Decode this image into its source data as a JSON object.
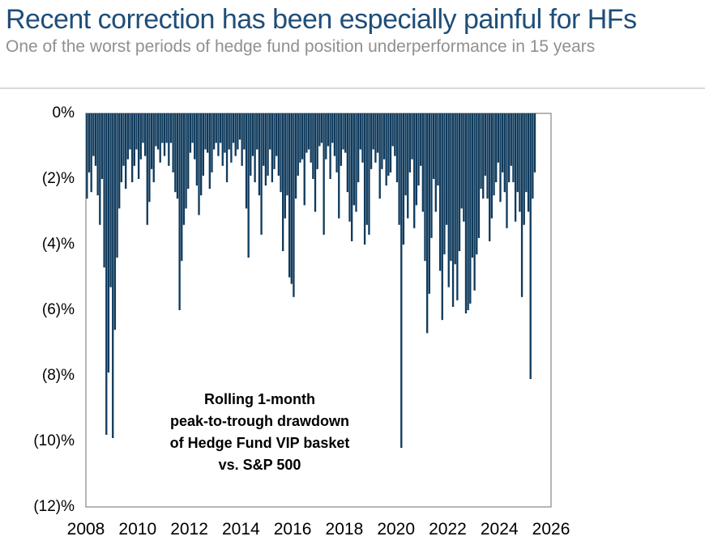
{
  "header": {
    "title": "Recent correction has been especially painful for HFs",
    "subtitle": "One of the worst periods of hedge fund position underperformance in 15 years"
  },
  "colors": {
    "title_navy": "#1f4e79",
    "subtitle_gray": "#909090",
    "bar_navy": "#0f3a5c",
    "plot_border_gray": "#9e9e9e",
    "divider_gray": "#d8d8d8"
  },
  "chart_data": {
    "type": "bar",
    "annotation": "Rolling 1-month\npeak-to-trough drawdown\nof Hedge Fund VIP basket\nvs. S&P 500",
    "bar_color": "#0f3a5c",
    "ylim": [
      -12,
      0
    ],
    "xlim_years": [
      2008,
      2026
    ],
    "grid": false,
    "legend": "none",
    "y_ticks": [
      {
        "label": "0%",
        "value": 0
      },
      {
        "label": "(2)%",
        "value": -2
      },
      {
        "label": "(4)%",
        "value": -4
      },
      {
        "label": "(6)%",
        "value": -6
      },
      {
        "label": "(8)%",
        "value": -8
      },
      {
        "label": "(10)%",
        "value": -10
      },
      {
        "label": "(12)%",
        "value": -12
      }
    ],
    "x_ticks": [
      {
        "label": "2008",
        "year": 2008
      },
      {
        "label": "2010",
        "year": 2010
      },
      {
        "label": "2012",
        "year": 2012
      },
      {
        "label": "2014",
        "year": 2014
      },
      {
        "label": "2016",
        "year": 2016
      },
      {
        "label": "2018",
        "year": 2018
      },
      {
        "label": "2020",
        "year": 2020
      },
      {
        "label": "2022",
        "year": 2022
      },
      {
        "label": "2024",
        "year": 2024
      },
      {
        "label": "2026",
        "year": 2026
      }
    ],
    "series": [
      {
        "name": "Rolling 1-month peak-to-trough drawdown of Hedge Fund VIP basket vs. S&P 500 (%)",
        "start_year": 2008,
        "start_month": 1,
        "frequency": "monthly",
        "values": [
          -2.6,
          -1.8,
          -2.4,
          -1.3,
          -1.6,
          -2.5,
          -3.4,
          -2.0,
          -4.7,
          -9.8,
          -7.9,
          -5.3,
          -9.9,
          -6.6,
          -4.4,
          -2.9,
          -2.1,
          -1.6,
          -2.3,
          -1.4,
          -1.1,
          -2.1,
          -1.6,
          -1.1,
          -2.0,
          -1.4,
          -0.9,
          -1.3,
          -3.4,
          -2.7,
          -1.7,
          -2.1,
          -1.0,
          -1.1,
          -1.5,
          -0.9,
          -1.3,
          -0.9,
          -1.6,
          -0.9,
          -1.8,
          -2.4,
          -2.6,
          -6.0,
          -4.5,
          -3.4,
          -2.9,
          -2.3,
          -1.2,
          -0.9,
          -1.4,
          -2.2,
          -3.1,
          -2.5,
          -1.9,
          -1.1,
          -1.2,
          -2.3,
          -1.8,
          -1.1,
          -0.9,
          -1.3,
          -0.9,
          -1.6,
          -1.2,
          -2.1,
          -1.1,
          -1.5,
          -0.9,
          -1.3,
          -1.1,
          -0.8,
          -1.6,
          -1.1,
          -2.9,
          -4.4,
          -1.9,
          -1.3,
          -2.1,
          -1.1,
          -2.5,
          -3.7,
          -1.6,
          -2.2,
          -1.9,
          -1.1,
          -2.1,
          -1.7,
          -1.3,
          -1.9,
          -2.4,
          -4.2,
          -3.2,
          -2.5,
          -5.0,
          -5.2,
          -5.6,
          -2.6,
          -1.9,
          -1.5,
          -1.4,
          -2.8,
          -1.2,
          -1.1,
          -1.5,
          -2.0,
          -3.0,
          -1.7,
          -1.0,
          -0.9,
          -3.7,
          -1.4,
          -1.0,
          -2.0,
          -0.9,
          -1.3,
          -1.8,
          -3.2,
          -1.6,
          -1.1,
          -1.2,
          -2.4,
          -3.3,
          -3.9,
          -2.8,
          -3.0,
          -2.1,
          -1.1,
          -1.5,
          -4.0,
          -3.4,
          -3.7,
          -1.7,
          -1.1,
          -1.5,
          -1.2,
          -2.6,
          -1.7,
          -1.4,
          -2.2,
          -1.9,
          -1.8,
          -1.0,
          -1.3,
          -2.1,
          -3.4,
          -10.2,
          -4.0,
          -2.5,
          -3.2,
          -1.8,
          -1.4,
          -3.5,
          -2.8,
          -2.2,
          -1.6,
          -3.0,
          -4.5,
          -6.7,
          -5.5,
          -3.8,
          -2.0,
          -3.0,
          -2.2,
          -4.8,
          -6.3,
          -4.3,
          -3.4,
          -5.3,
          -4.5,
          -5.9,
          -4.6,
          -5.7,
          -4.2,
          -2.9,
          -3.3,
          -6.1,
          -6.0,
          -5.8,
          -4.4,
          -5.4,
          -4.3,
          -3.8,
          -2.3,
          -2.6,
          -1.9,
          -2.6,
          -3.9,
          -3.2,
          -2.5,
          -2.1,
          -1.5,
          -2.7,
          -1.8,
          -2.4,
          -3.5,
          -2.1,
          -1.6,
          -2.1,
          -3.3,
          -2.4,
          -3.0,
          -5.6,
          -3.4,
          -2.4,
          -3.0,
          -8.1,
          -2.6,
          -1.8
        ]
      }
    ]
  }
}
